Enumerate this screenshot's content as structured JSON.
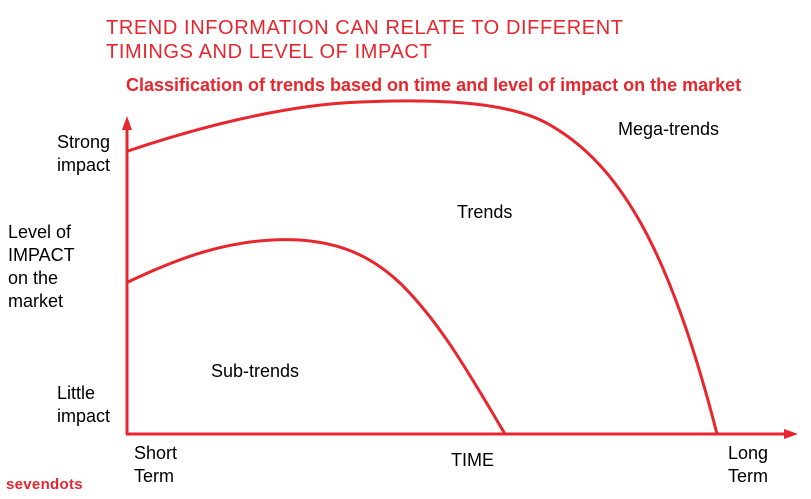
{
  "title": {
    "line1": "TREND INFORMATION CAN RELATE TO DIFFERENT",
    "line2": "TIMINGS AND LEVEL OF IMPACT"
  },
  "subtitle": "Classification of trends based on time and level of impact on the market",
  "y_axis": {
    "top_label": [
      "Strong",
      "impact"
    ],
    "middle_label": [
      "Level of",
      "IMPACT",
      "on the",
      "market"
    ],
    "bottom_label": [
      "Little",
      "impact"
    ]
  },
  "x_axis": {
    "left_label": [
      "Short",
      "Term"
    ],
    "middle_label": "TIME",
    "right_label": [
      "Long",
      "Term"
    ]
  },
  "regions": {
    "mega_trends": "Mega-trends",
    "trends": "Trends",
    "sub_trends": "Sub-trends"
  },
  "logo": "sevendots",
  "colors": {
    "accent": "#e8262d",
    "text": "#000000"
  }
}
